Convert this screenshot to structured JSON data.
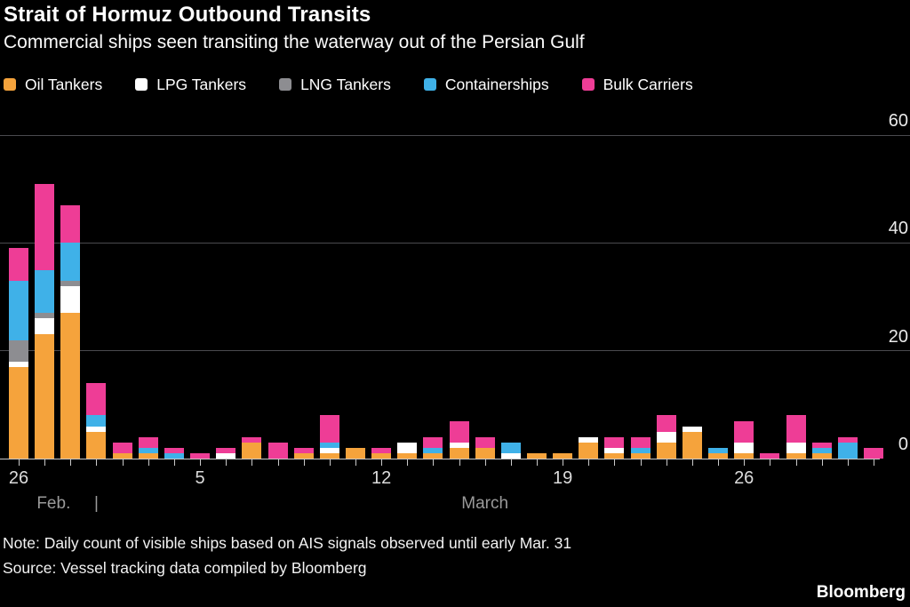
{
  "header": {
    "title": "Strait of Hormuz Outbound Transits",
    "subtitle": "Commercial ships seen transiting the waterway out of the Persian Gulf"
  },
  "colors": {
    "background": "#000000",
    "oil_tankers": "#f5a33c",
    "lpg_tankers": "#ffffff",
    "lng_tankers": "#8d8d91",
    "containerships": "#3fb1e8",
    "bulk_carriers": "#ee3d96",
    "gridline": "#4a4a4e",
    "axis": "#c9c9c9"
  },
  "chart_data": {
    "type": "bar",
    "stacked": true,
    "title": "Strait of Hormuz Outbound Transits",
    "xlabel": "",
    "ylabel": "",
    "ylim": [
      0,
      60
    ],
    "y_ticks": [
      0,
      20,
      40,
      60
    ],
    "grid": "horizontal",
    "legend_position": "top",
    "categories": [
      "Feb 26",
      "Feb 27",
      "Feb 28",
      "Mar 1",
      "Mar 2",
      "Mar 3",
      "Mar 4",
      "Mar 5",
      "Mar 6",
      "Mar 7",
      "Mar 8",
      "Mar 9",
      "Mar 10",
      "Mar 11",
      "Mar 12",
      "Mar 13",
      "Mar 14",
      "Mar 15",
      "Mar 16",
      "Mar 17",
      "Mar 18",
      "Mar 19",
      "Mar 20",
      "Mar 21",
      "Mar 22",
      "Mar 23",
      "Mar 24",
      "Mar 25",
      "Mar 26",
      "Mar 27",
      "Mar 28",
      "Mar 29",
      "Mar 30",
      "Mar 31"
    ],
    "series": [
      {
        "name": "Oil Tankers",
        "color": "#f5a33c",
        "values": [
          17,
          23,
          27,
          5,
          1,
          1,
          0,
          0,
          0,
          3,
          0,
          1,
          1,
          2,
          1,
          1,
          1,
          2,
          2,
          0,
          1,
          1,
          3,
          1,
          1,
          3,
          5,
          1,
          1,
          0,
          1,
          1,
          0,
          0
        ]
      },
      {
        "name": "LPG Tankers",
        "color": "#ffffff",
        "values": [
          1,
          3,
          5,
          1,
          0,
          0,
          0,
          0,
          1,
          0,
          0,
          0,
          1,
          0,
          0,
          2,
          0,
          1,
          0,
          1,
          0,
          0,
          1,
          1,
          0,
          2,
          1,
          0,
          2,
          0,
          2,
          0,
          0,
          0
        ]
      },
      {
        "name": "LNG Tankers",
        "color": "#8d8d91",
        "values": [
          4,
          1,
          1,
          0,
          0,
          0,
          0,
          0,
          0,
          0,
          0,
          0,
          0,
          0,
          0,
          0,
          0,
          0,
          0,
          0,
          0,
          0,
          0,
          0,
          0,
          0,
          0,
          0,
          0,
          0,
          0,
          0,
          0,
          0
        ]
      },
      {
        "name": "Containerships",
        "color": "#3fb1e8",
        "values": [
          11,
          8,
          7,
          2,
          0,
          1,
          1,
          0,
          0,
          0,
          0,
          0,
          1,
          0,
          0,
          0,
          1,
          0,
          0,
          2,
          0,
          0,
          0,
          0,
          1,
          0,
          0,
          1,
          0,
          0,
          0,
          1,
          3,
          0
        ]
      },
      {
        "name": "Bulk Carriers",
        "color": "#ee3d96",
        "values": [
          6,
          16,
          7,
          6,
          2,
          2,
          1,
          1,
          1,
          1,
          3,
          1,
          5,
          0,
          1,
          0,
          2,
          4,
          2,
          0,
          0,
          0,
          0,
          2,
          2,
          3,
          0,
          0,
          4,
          1,
          5,
          1,
          1,
          2
        ]
      }
    ],
    "x_tick_labels": [
      {
        "text": "26",
        "day": 0
      },
      {
        "text": "5",
        "day": 7
      },
      {
        "text": "12",
        "day": 14
      },
      {
        "text": "19",
        "day": 21
      },
      {
        "text": "26",
        "day": 28
      }
    ],
    "month_labels": [
      {
        "text": "Feb.",
        "day": 1.35
      },
      {
        "text": "|",
        "day": 3.0
      },
      {
        "text": "March",
        "day": 18.0
      }
    ]
  },
  "footer": {
    "note": "Note: Daily count of visible ships based on AIS signals observed until early Mar. 31",
    "source": "Source: Vessel tracking data compiled by Bloomberg",
    "brand": "Bloomberg"
  }
}
